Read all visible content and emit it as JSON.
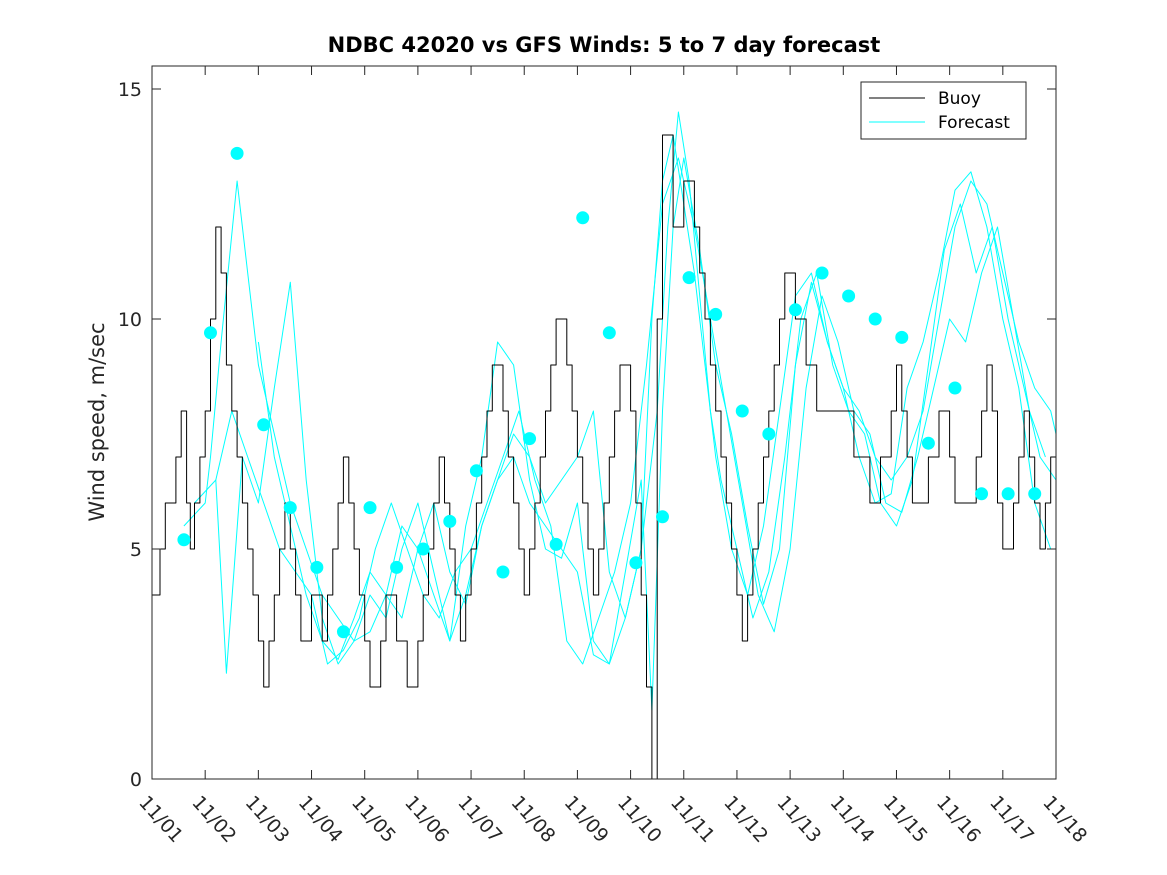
{
  "chart_data": {
    "type": "line",
    "title": "NDBC 42020 vs GFS Winds: 5 to 7 day forecast",
    "ylabel": "Wind speed, m/sec",
    "xlabel": "",
    "xlim": [
      0,
      17
    ],
    "ylim": [
      0,
      15.5
    ],
    "yticks": [
      0,
      5,
      10,
      15
    ],
    "ytick_labels": [
      "0",
      "5",
      "10",
      "15"
    ],
    "xticks": [
      0,
      1,
      2,
      3,
      4,
      5,
      6,
      7,
      8,
      9,
      10,
      11,
      12,
      13,
      14,
      15,
      16,
      17
    ],
    "xtick_labels": [
      "11/01",
      "11/02",
      "11/03",
      "11/04",
      "11/05",
      "11/06",
      "11/07",
      "11/08",
      "11/09",
      "11/10",
      "11/11",
      "11/12",
      "11/13",
      "11/14",
      "11/15",
      "11/16",
      "11/17",
      "11/18"
    ],
    "legend": {
      "position": "top-right",
      "entries": [
        "Buoy",
        "Forecast"
      ]
    },
    "colors": {
      "buoy": "#000000",
      "forecast": "#00ffff"
    },
    "series": [
      {
        "name": "Buoy",
        "x": [
          0.0,
          0.05,
          0.15,
          0.25,
          0.35,
          0.45,
          0.55,
          0.65,
          0.72,
          0.8,
          0.9,
          1.0,
          1.1,
          1.2,
          1.3,
          1.4,
          1.5,
          1.6,
          1.7,
          1.8,
          1.9,
          2.0,
          2.1,
          2.2,
          2.3,
          2.4,
          2.5,
          2.6,
          2.7,
          2.8,
          2.9,
          3.0,
          3.1,
          3.2,
          3.3,
          3.4,
          3.5,
          3.6,
          3.7,
          3.8,
          3.9,
          4.0,
          4.1,
          4.2,
          4.3,
          4.4,
          4.5,
          4.6,
          4.7,
          4.8,
          4.9,
          5.0,
          5.1,
          5.2,
          5.3,
          5.4,
          5.5,
          5.6,
          5.7,
          5.8,
          5.9,
          6.0,
          6.1,
          6.2,
          6.3,
          6.4,
          6.5,
          6.6,
          6.7,
          6.8,
          6.9,
          7.0,
          7.1,
          7.2,
          7.3,
          7.4,
          7.5,
          7.6,
          7.7,
          7.8,
          7.9,
          8.0,
          8.1,
          8.2,
          8.3,
          8.4,
          8.5,
          8.6,
          8.7,
          8.8,
          8.9,
          9.0,
          9.1,
          9.2,
          9.3,
          9.4,
          9.5,
          9.6,
          9.7,
          9.8,
          9.9,
          10.0,
          10.1,
          10.2,
          10.3,
          10.4,
          10.5,
          10.6,
          10.7,
          10.8,
          10.9,
          11.0,
          11.1,
          11.2,
          11.3,
          11.4,
          11.5,
          11.6,
          11.7,
          11.8,
          11.9,
          12.0,
          12.1,
          12.2,
          12.3,
          12.4,
          12.5,
          12.6,
          12.7,
          12.8,
          12.9,
          13.0,
          13.1,
          13.2,
          13.3,
          13.4,
          13.5,
          13.6,
          13.7,
          13.8,
          13.9,
          14.0,
          14.1,
          14.2,
          14.3,
          14.4,
          14.5,
          14.6,
          14.7,
          14.8,
          14.9,
          15.0,
          15.1,
          15.2,
          15.3,
          15.4,
          15.5,
          15.6,
          15.7,
          15.8,
          15.9,
          16.0,
          16.1,
          16.2,
          16.3,
          16.4,
          16.5,
          16.6,
          16.7,
          16.8,
          16.9,
          17.0
        ],
        "values": [
          4,
          4,
          5,
          6,
          6,
          7,
          8,
          6,
          5,
          6,
          7,
          8,
          10,
          12,
          11,
          9,
          8,
          7,
          6,
          5,
          4,
          3,
          2,
          3,
          4,
          5,
          6,
          5,
          4,
          3,
          3,
          4,
          4,
          3,
          4,
          5,
          6,
          7,
          6,
          5,
          4,
          3,
          2,
          2,
          3,
          4,
          4,
          3,
          3,
          2,
          2,
          3,
          4,
          5,
          6,
          7,
          6,
          5,
          4,
          3,
          4,
          5,
          6,
          7,
          8,
          9,
          9,
          8,
          7,
          6,
          5,
          4,
          5,
          6,
          7,
          8,
          9,
          10,
          10,
          9,
          8,
          7,
          6,
          5,
          4,
          5,
          6,
          7,
          8,
          9,
          9,
          8,
          6,
          4,
          2,
          0,
          10,
          14,
          14,
          12,
          12,
          13,
          13,
          12,
          11,
          10,
          9,
          8,
          7,
          6,
          5,
          4,
          3,
          4,
          5,
          6,
          7,
          8,
          9,
          10,
          11,
          11,
          10,
          10,
          9,
          9,
          8,
          8,
          8,
          8,
          8,
          8,
          8,
          7,
          7,
          7,
          6,
          6,
          7,
          7,
          8,
          9,
          8,
          7,
          6,
          6,
          6,
          7,
          7,
          8,
          8,
          7,
          6,
          6,
          6,
          6,
          7,
          8,
          9,
          8,
          6,
          5,
          5,
          6,
          7,
          8,
          7,
          6,
          5,
          6,
          7,
          7
        ]
      },
      {
        "name": "Forecast",
        "x": [
          0.6,
          1.0,
          1.1,
          1.3,
          1.6,
          1.8,
          2.0,
          2.3,
          2.6,
          2.9,
          3.2,
          3.5,
          3.8,
          4.1,
          4.4,
          4.7,
          5.0,
          5.3,
          5.6,
          5.9,
          6.2,
          6.5,
          6.8,
          7.1,
          7.4,
          7.7,
          8.0,
          8.3,
          8.6,
          8.9,
          9.2,
          9.4,
          9.6,
          9.8,
          10.0,
          10.2,
          10.4,
          10.6,
          10.9,
          11.2,
          11.5,
          11.8,
          12.1,
          12.4,
          12.7,
          13.0,
          13.3,
          13.6,
          13.9,
          14.2,
          14.5,
          14.8,
          15.1,
          15.4,
          15.7,
          16.0,
          16.3,
          16.6,
          16.9,
          17.0
        ],
        "values": [
          5.5,
          6.0,
          7.0,
          9.5,
          13.0,
          11.0,
          9.0,
          7.5,
          6.0,
          5.0,
          4.0,
          3.5,
          3.0,
          3.2,
          4.0,
          5.5,
          5.0,
          4.0,
          3.0,
          4.0,
          5.5,
          6.5,
          7.5,
          7.0,
          6.0,
          6.5,
          7.0,
          8.0,
          4.5,
          3.5,
          5.0,
          10.0,
          13.0,
          14.0,
          12.5,
          11.0,
          9.0,
          7.0,
          5.0,
          4.0,
          5.5,
          8.0,
          10.5,
          11.0,
          9.5,
          8.5,
          8.0,
          7.0,
          6.5,
          7.0,
          8.0,
          10.0,
          12.0,
          13.0,
          12.5,
          11.0,
          9.5,
          8.5,
          8.0,
          7.5
        ]
      },
      {
        "name": "Forecast",
        "x": [
          0.8,
          1.2,
          1.4,
          1.7,
          2.0,
          2.3,
          2.6,
          2.9,
          3.2,
          3.5,
          3.8,
          4.1,
          4.4,
          4.7,
          5.0,
          5.3,
          5.6,
          5.9,
          6.2,
          6.5,
          6.8,
          7.1,
          7.4,
          7.7,
          8.0,
          8.3,
          8.6,
          8.9,
          9.2,
          9.5,
          9.7,
          9.9,
          10.1,
          10.3,
          10.5,
          10.7,
          11.0,
          11.3,
          11.6,
          11.9,
          12.2,
          12.5,
          12.8,
          13.1,
          13.4,
          13.7,
          14.0,
          14.3,
          14.6,
          14.9,
          15.2,
          15.5,
          15.8,
          16.1,
          16.4,
          16.7,
          17.0
        ],
        "values": [
          6.0,
          6.5,
          2.3,
          7.0,
          6.0,
          8.5,
          10.8,
          6.5,
          3.5,
          2.5,
          3.0,
          4.0,
          3.5,
          5.0,
          6.0,
          4.5,
          3.0,
          5.5,
          7.0,
          9.5,
          9.0,
          6.5,
          5.0,
          4.8,
          6.0,
          3.0,
          2.5,
          3.5,
          5.0,
          8.0,
          12.0,
          14.5,
          13.0,
          10.5,
          8.0,
          6.5,
          5.0,
          3.5,
          4.5,
          7.0,
          10.0,
          11.0,
          9.0,
          8.0,
          7.5,
          6.0,
          5.5,
          6.5,
          9.0,
          11.5,
          12.5,
          11.0,
          12.0,
          10.0,
          8.5,
          7.0,
          6.5
        ]
      },
      {
        "name": "Forecast",
        "x": [
          1.2,
          1.5,
          1.8,
          2.1,
          2.4,
          2.7,
          3.0,
          3.3,
          3.6,
          3.9,
          4.2,
          4.5,
          4.8,
          5.1,
          5.4,
          5.7,
          6.0,
          6.3,
          6.6,
          6.9,
          7.2,
          7.5,
          7.8,
          8.1,
          8.4,
          8.7,
          9.0,
          9.3,
          9.6,
          9.9,
          10.2,
          10.5,
          10.8,
          11.1,
          11.4,
          11.7,
          12.0,
          12.3,
          12.6,
          12.9,
          13.2,
          13.5,
          13.8,
          14.1,
          14.4,
          14.7,
          15.0,
          15.3,
          15.6,
          15.9,
          16.2,
          16.5,
          16.8
        ],
        "values": [
          6.5,
          8.0,
          7.0,
          6.0,
          5.0,
          4.5,
          4.0,
          2.5,
          2.8,
          3.5,
          5.0,
          6.0,
          5.0,
          4.0,
          3.5,
          4.5,
          5.0,
          6.0,
          7.0,
          8.0,
          6.5,
          5.5,
          3.0,
          2.5,
          3.5,
          4.5,
          6.0,
          9.0,
          12.5,
          13.5,
          12.0,
          10.0,
          8.0,
          6.0,
          4.0,
          3.2,
          5.0,
          8.5,
          10.5,
          9.5,
          8.0,
          7.5,
          6.0,
          5.8,
          7.0,
          8.5,
          10.0,
          9.5,
          11.0,
          12.0,
          10.0,
          8.0,
          7.0
        ]
      },
      {
        "name": "Forecast",
        "x": [
          2.0,
          2.3,
          2.6,
          2.9,
          3.2,
          3.5,
          3.8,
          4.1,
          4.4,
          4.7,
          5.0,
          5.3,
          5.6,
          5.9,
          6.2,
          6.5,
          6.8,
          7.1,
          7.4,
          7.7,
          8.0,
          8.3,
          8.6,
          8.9,
          9.2,
          9.4,
          9.6,
          9.8,
          10.0,
          10.3,
          10.6,
          10.9,
          11.2,
          11.5,
          11.8,
          12.1,
          12.4,
          12.7,
          13.0,
          13.3,
          13.6,
          13.9,
          14.2,
          14.5,
          14.8,
          15.1,
          15.4,
          15.7,
          16.0,
          16.3,
          16.6,
          16.9
        ],
        "values": [
          9.5,
          7.0,
          5.5,
          4.0,
          3.0,
          2.6,
          3.5,
          4.5,
          4.0,
          3.5,
          5.0,
          6.0,
          4.5,
          3.8,
          5.5,
          6.5,
          7.0,
          6.0,
          5.5,
          5.0,
          4.5,
          2.7,
          2.5,
          4.5,
          6.5,
          1.5,
          8.0,
          12.0,
          13.5,
          11.5,
          9.0,
          7.5,
          5.5,
          3.8,
          5.0,
          9.0,
          10.8,
          9.5,
          8.5,
          7.0,
          6.0,
          6.2,
          8.5,
          9.5,
          11.0,
          12.8,
          13.2,
          12.0,
          10.0,
          8.5,
          6.0,
          5.0
        ]
      }
    ],
    "markers": {
      "name": "Forecast markers",
      "x": [
        0.6,
        1.1,
        1.6,
        2.1,
        2.6,
        3.1,
        3.6,
        4.1,
        4.6,
        5.1,
        5.6,
        6.1,
        6.6,
        7.1,
        7.6,
        8.1,
        8.6,
        9.1,
        9.6,
        10.1,
        10.6,
        11.1,
        11.6,
        12.1,
        12.6,
        13.1,
        13.6,
        14.1,
        14.6,
        15.1,
        15.6,
        16.1,
        16.6
      ],
      "values": [
        5.2,
        9.7,
        13.6,
        7.7,
        5.9,
        4.6,
        3.2,
        5.9,
        4.6,
        5.0,
        5.6,
        6.7,
        4.5,
        7.4,
        5.1,
        12.2,
        9.7,
        4.7,
        5.7,
        10.9,
        10.1,
        8.0,
        7.5,
        10.2,
        11.0,
        10.5,
        10.0,
        9.6,
        7.3,
        8.5,
        6.2,
        6.2,
        6.2
      ]
    }
  }
}
